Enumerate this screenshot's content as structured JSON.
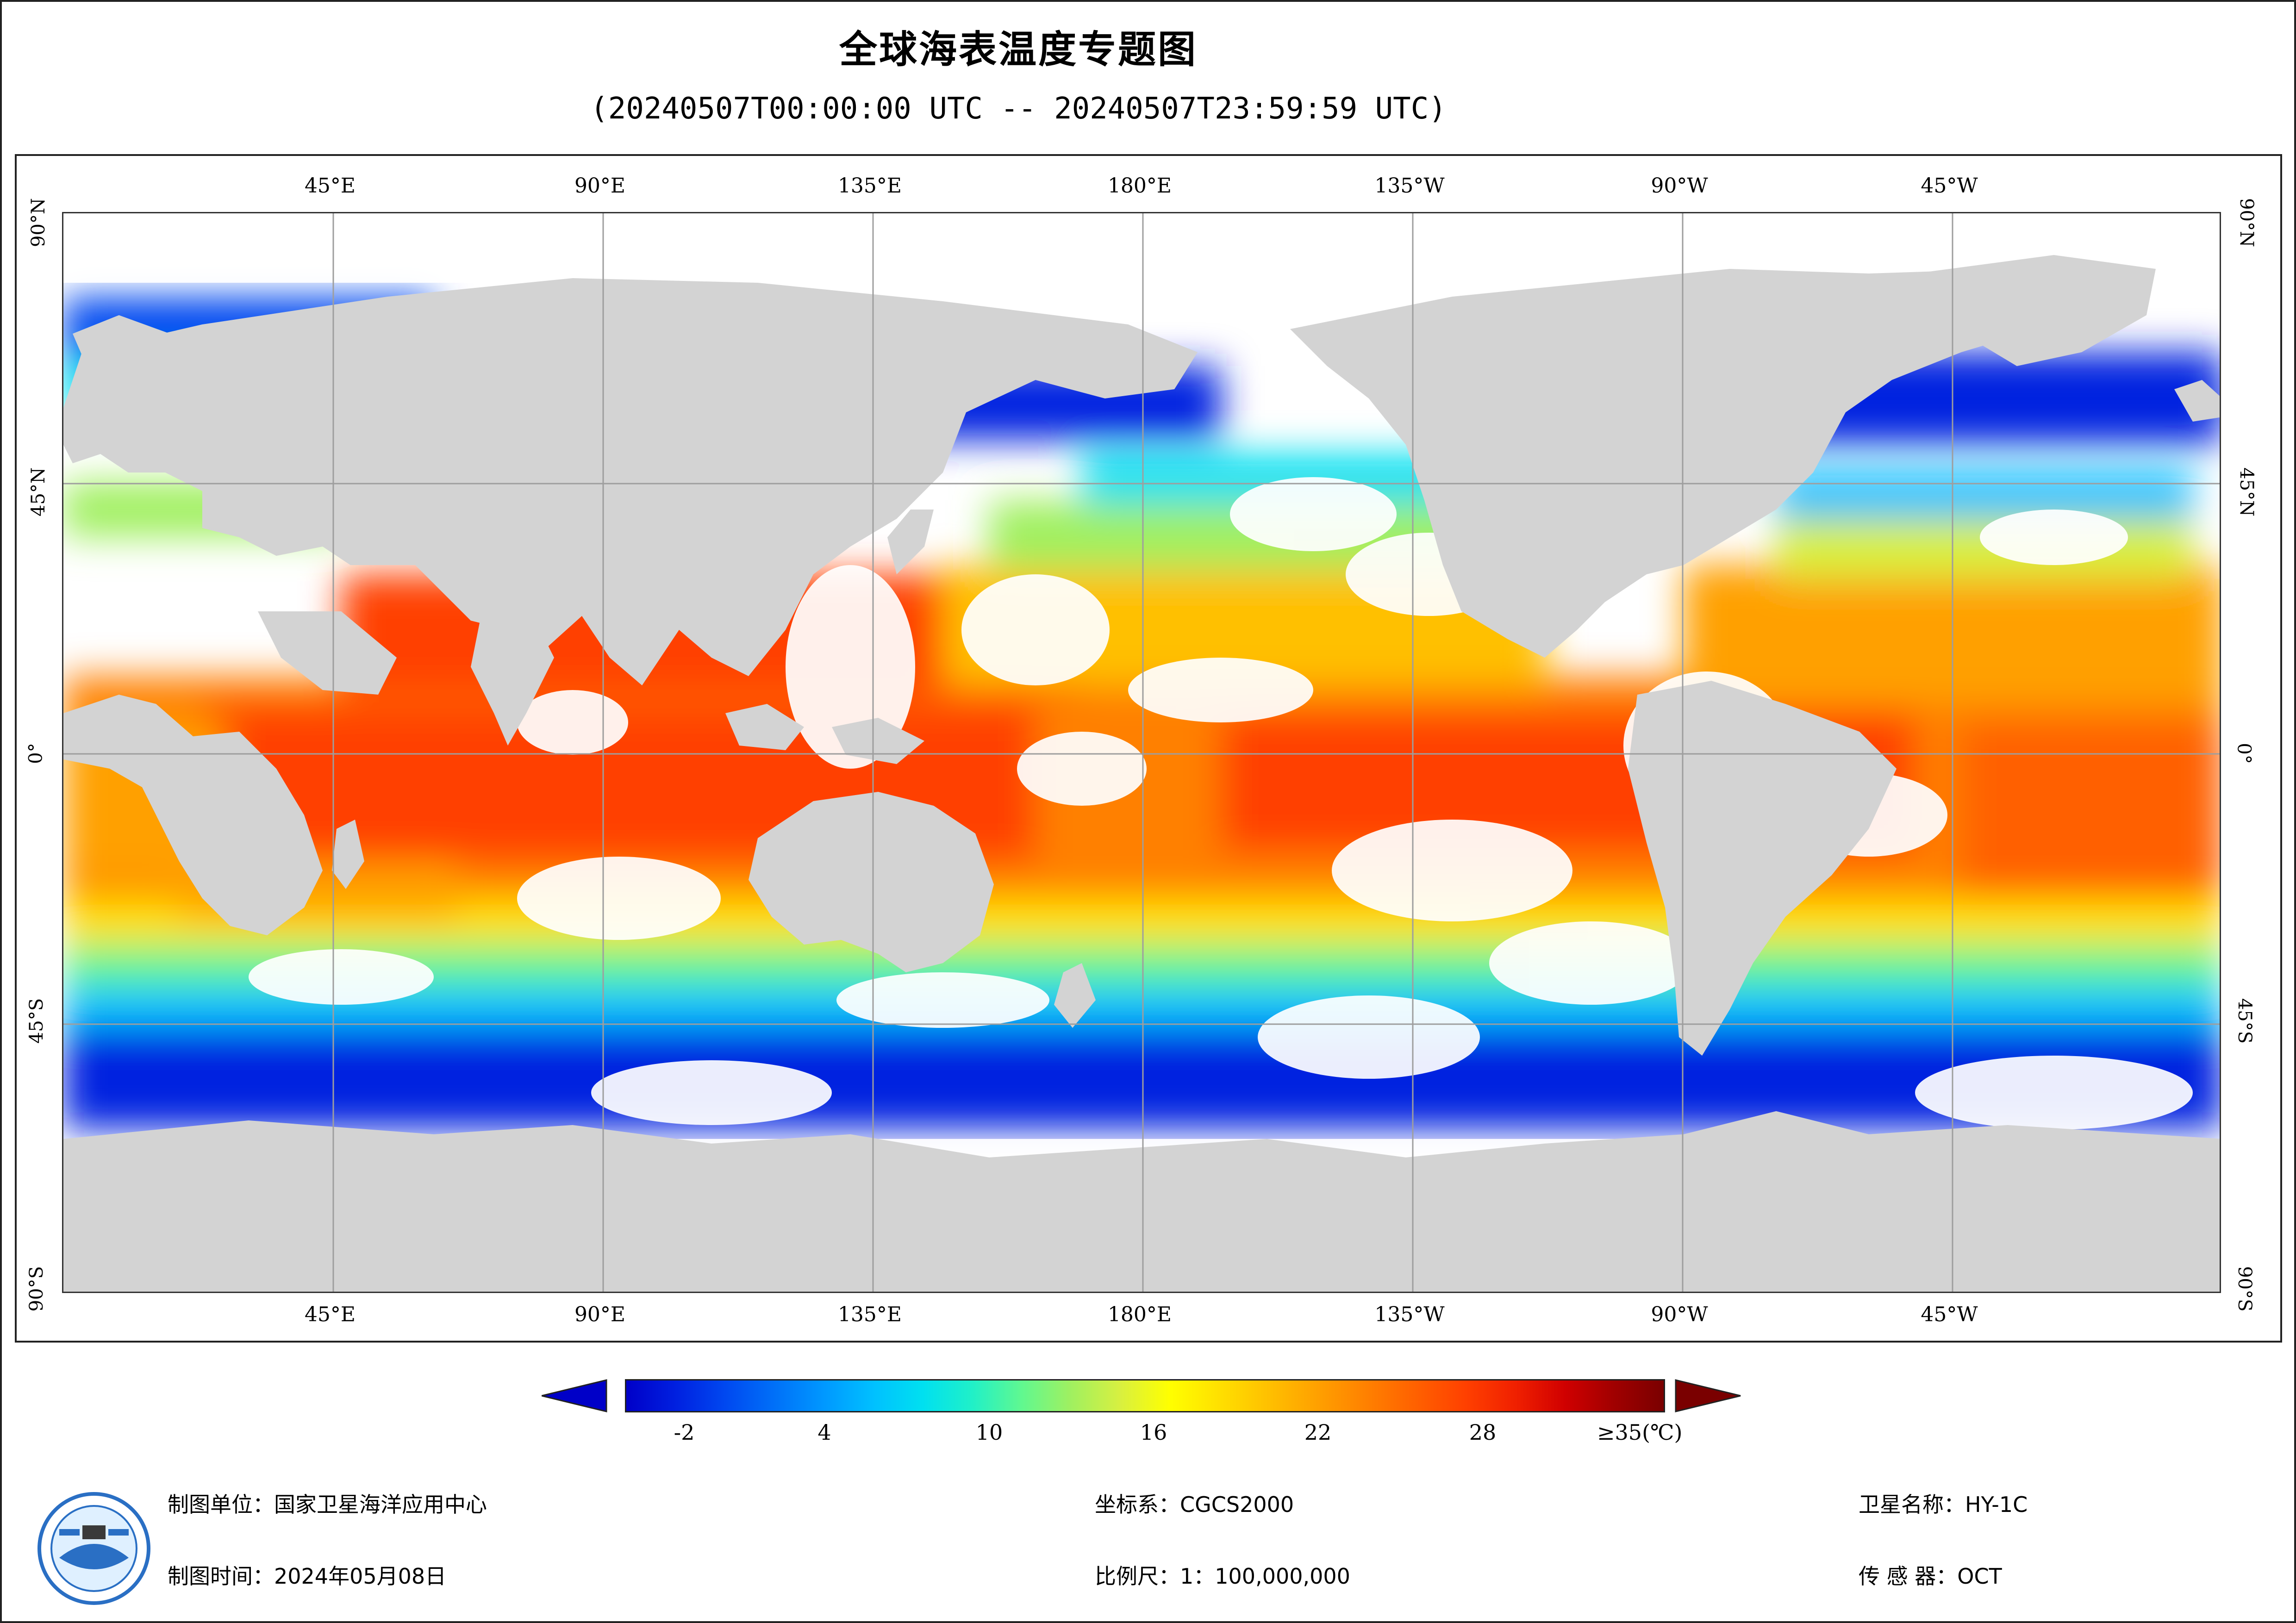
{
  "title": "全球海表温度专题图",
  "subtitle": "(20240507T00:00:00 UTC -- 20240507T23:59:59 UTC)",
  "map": {
    "longitude_labels": [
      "45°E",
      "90°E",
      "135°E",
      "180°E",
      "135°W",
      "90°W",
      "45°W"
    ],
    "latitude_labels": [
      "90°N",
      "45°N",
      "0°",
      "45°S",
      "90°S"
    ],
    "land_color": "#d3d3d3",
    "no_data_color": "#ffffff",
    "grid_color": "#9e9e9e"
  },
  "legend": {
    "ticks": [
      "-2",
      "4",
      "10",
      "16",
      "22",
      "28"
    ],
    "max_label": "≥35(℃)",
    "min_arrow_color": "#0000c8",
    "max_arrow_color": "#7a0000",
    "colors": [
      "#0000c8",
      "#0020e0",
      "#0048f0",
      "#0070f8",
      "#0098ff",
      "#00c0ff",
      "#00e0f0",
      "#20f0c8",
      "#60f890",
      "#a0f060",
      "#d8f040",
      "#ffff00",
      "#ffe000",
      "#ffc000",
      "#ffa000",
      "#ff8000",
      "#ff6000",
      "#ff4000",
      "#f02000",
      "#d00000",
      "#a00000",
      "#7a0000"
    ]
  },
  "footer": {
    "producer": "制图单位：国家卫星海洋应用中心",
    "date": "制图时间：2024年05月08日",
    "crs": "坐标系：CGCS2000",
    "scale": "比例尺：1：100,000,000",
    "satellite": "卫星名称：HY-1C",
    "sensor": "传 感 器：OCT"
  }
}
